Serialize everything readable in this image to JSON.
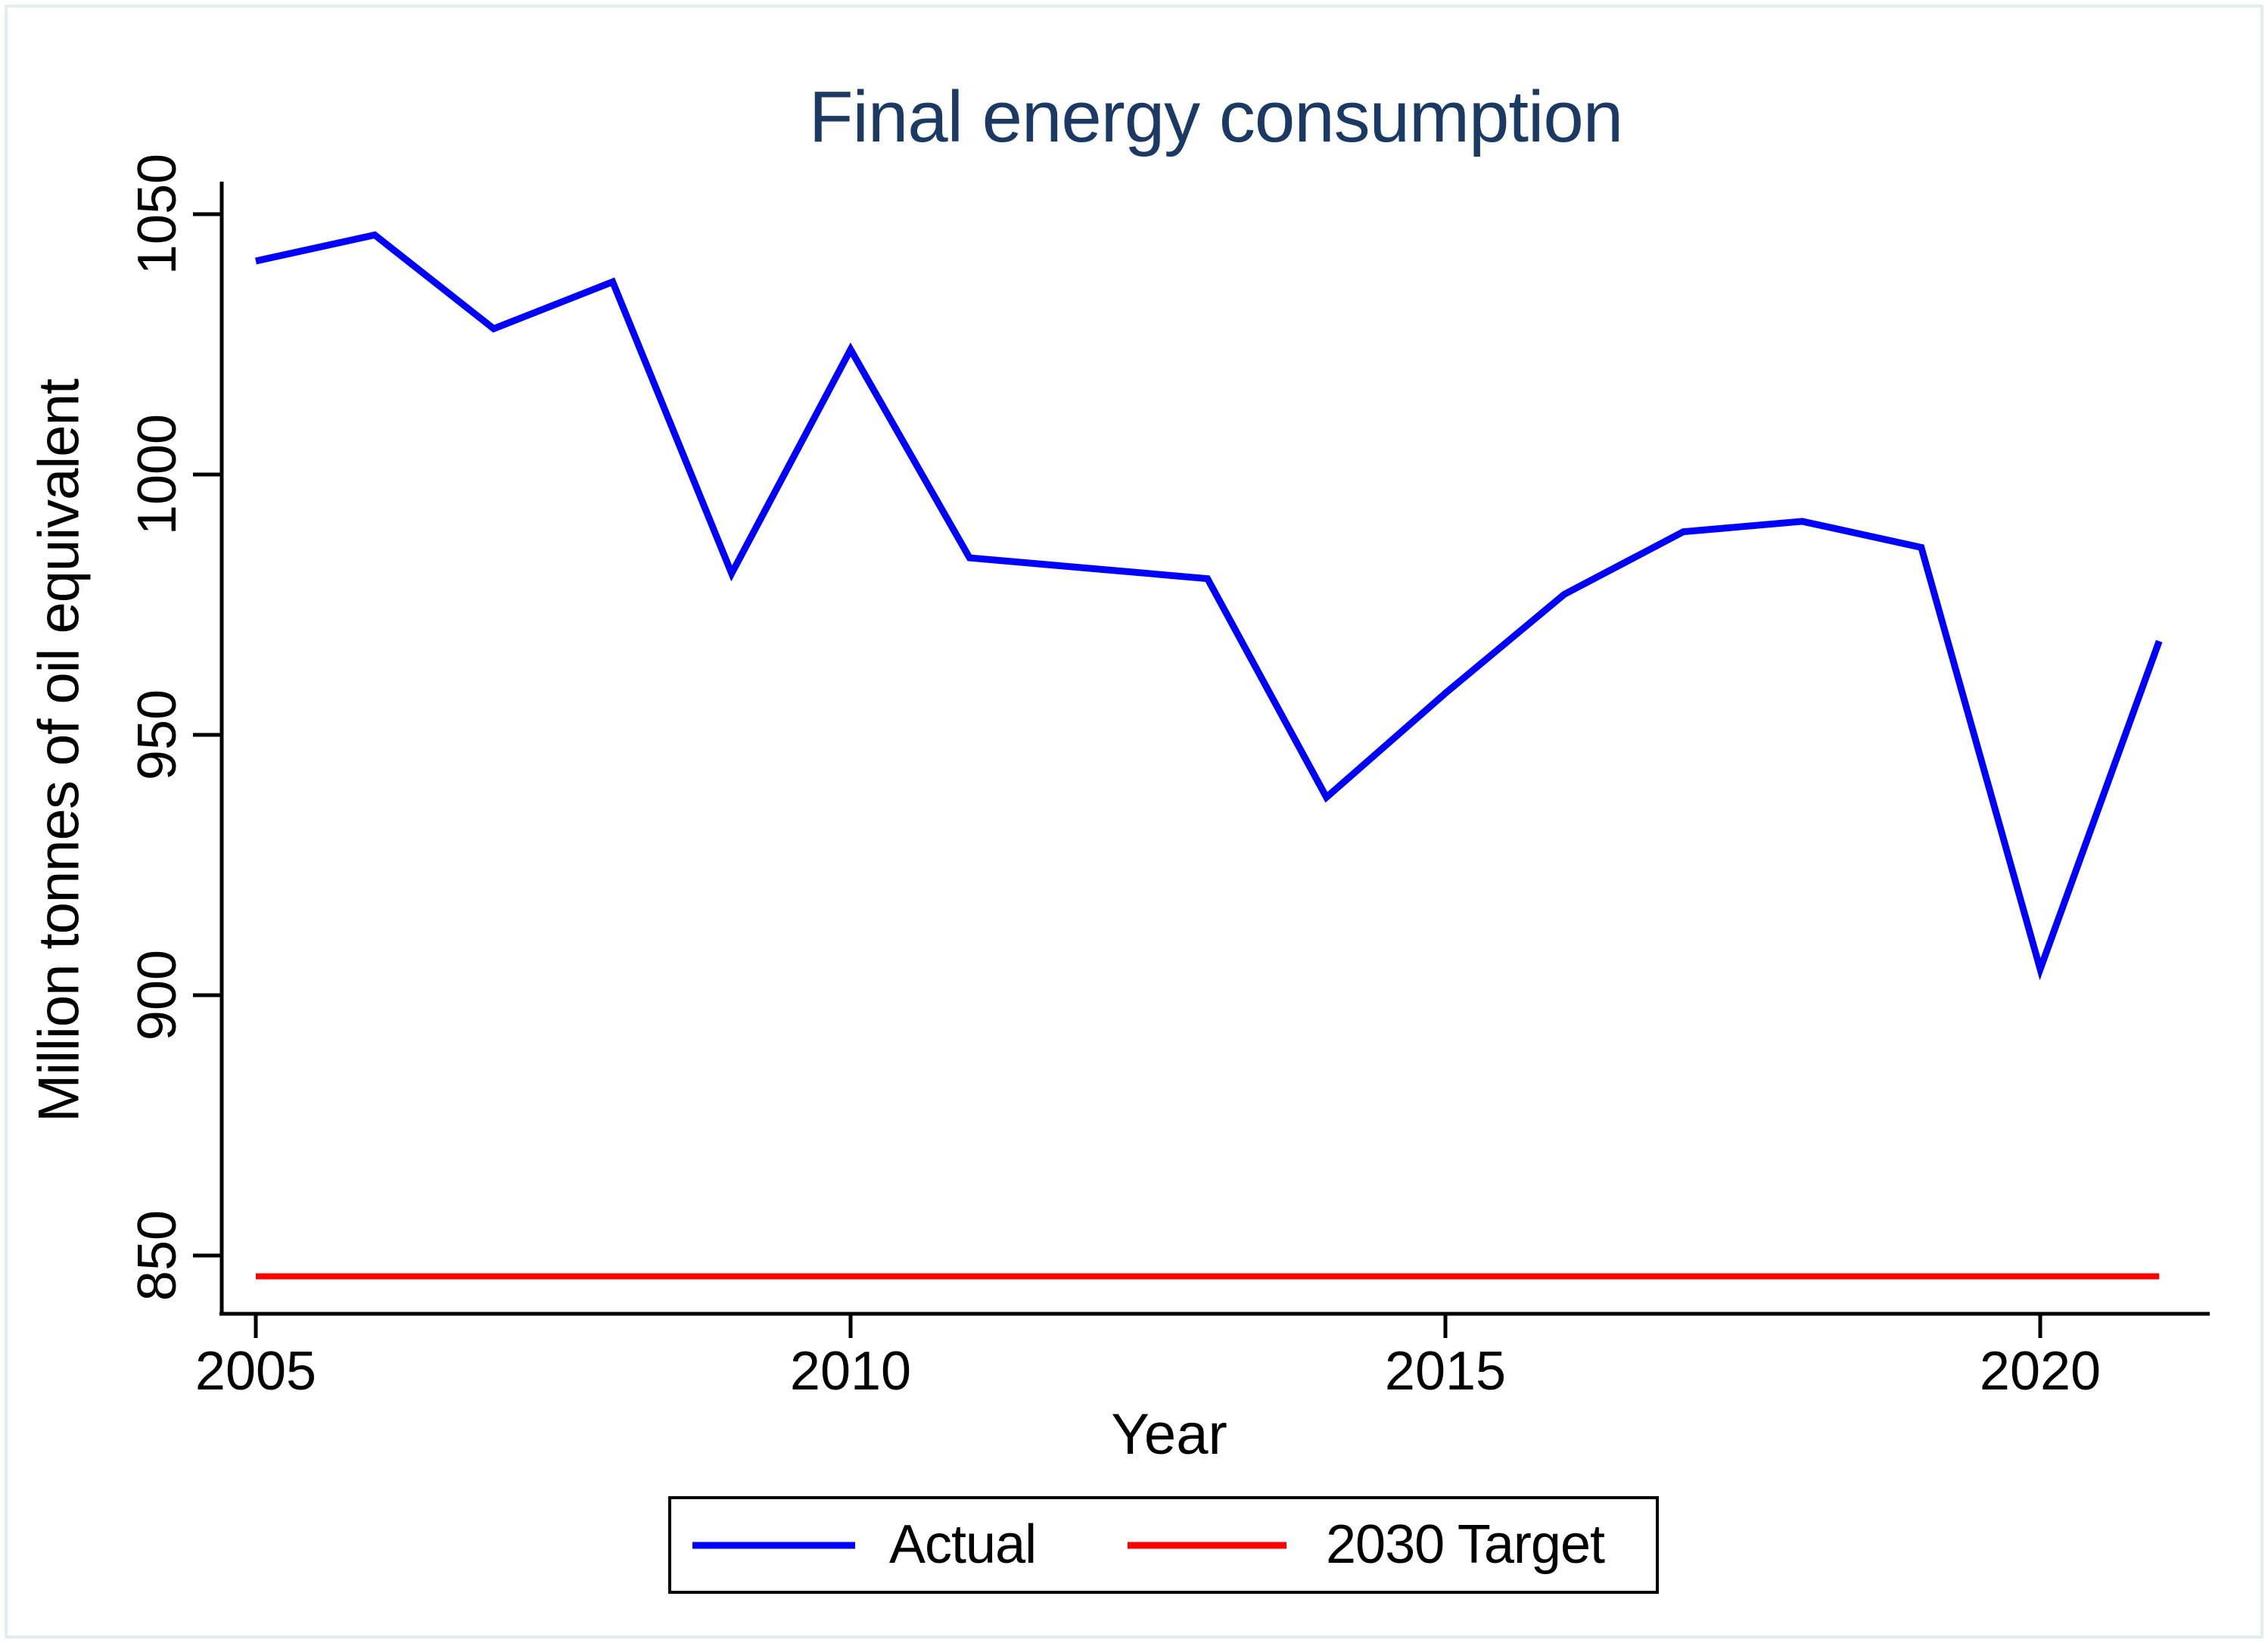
{
  "chart_data": {
    "type": "line",
    "title": "Final energy consumption",
    "xlabel": "Year",
    "ylabel": "Million tonnes of oil equivalent",
    "x": [
      2005,
      2006,
      2007,
      2008,
      2009,
      2010,
      2011,
      2012,
      2013,
      2014,
      2015,
      2016,
      2017,
      2018,
      2019,
      2020,
      2021
    ],
    "series": [
      {
        "name": "Actual",
        "color": "#0000ff",
        "values": [
          1041,
          1046,
          1028,
          1037,
          981,
          1024,
          984,
          982,
          980,
          938,
          958,
          977,
          989,
          991,
          986,
          905,
          968
        ]
      },
      {
        "name": "2030 Target",
        "color": "#ff0000",
        "constant": 846
      }
    ],
    "yticks": [
      850,
      900,
      950,
      1000,
      1050
    ],
    "xticks": [
      2005,
      2010,
      2015,
      2020
    ],
    "ylim": [
      839,
      1056
    ],
    "xlim": [
      2004.7,
      2021.45
    ],
    "grid": false,
    "legend_position": "bottom-center",
    "axis_color": "#000000",
    "title_color": "#1a3a64"
  },
  "legend": {
    "entries": [
      {
        "label": "Actual",
        "color": "#0000ff"
      },
      {
        "label": "2030 Target",
        "color": "#ff0000"
      }
    ]
  }
}
